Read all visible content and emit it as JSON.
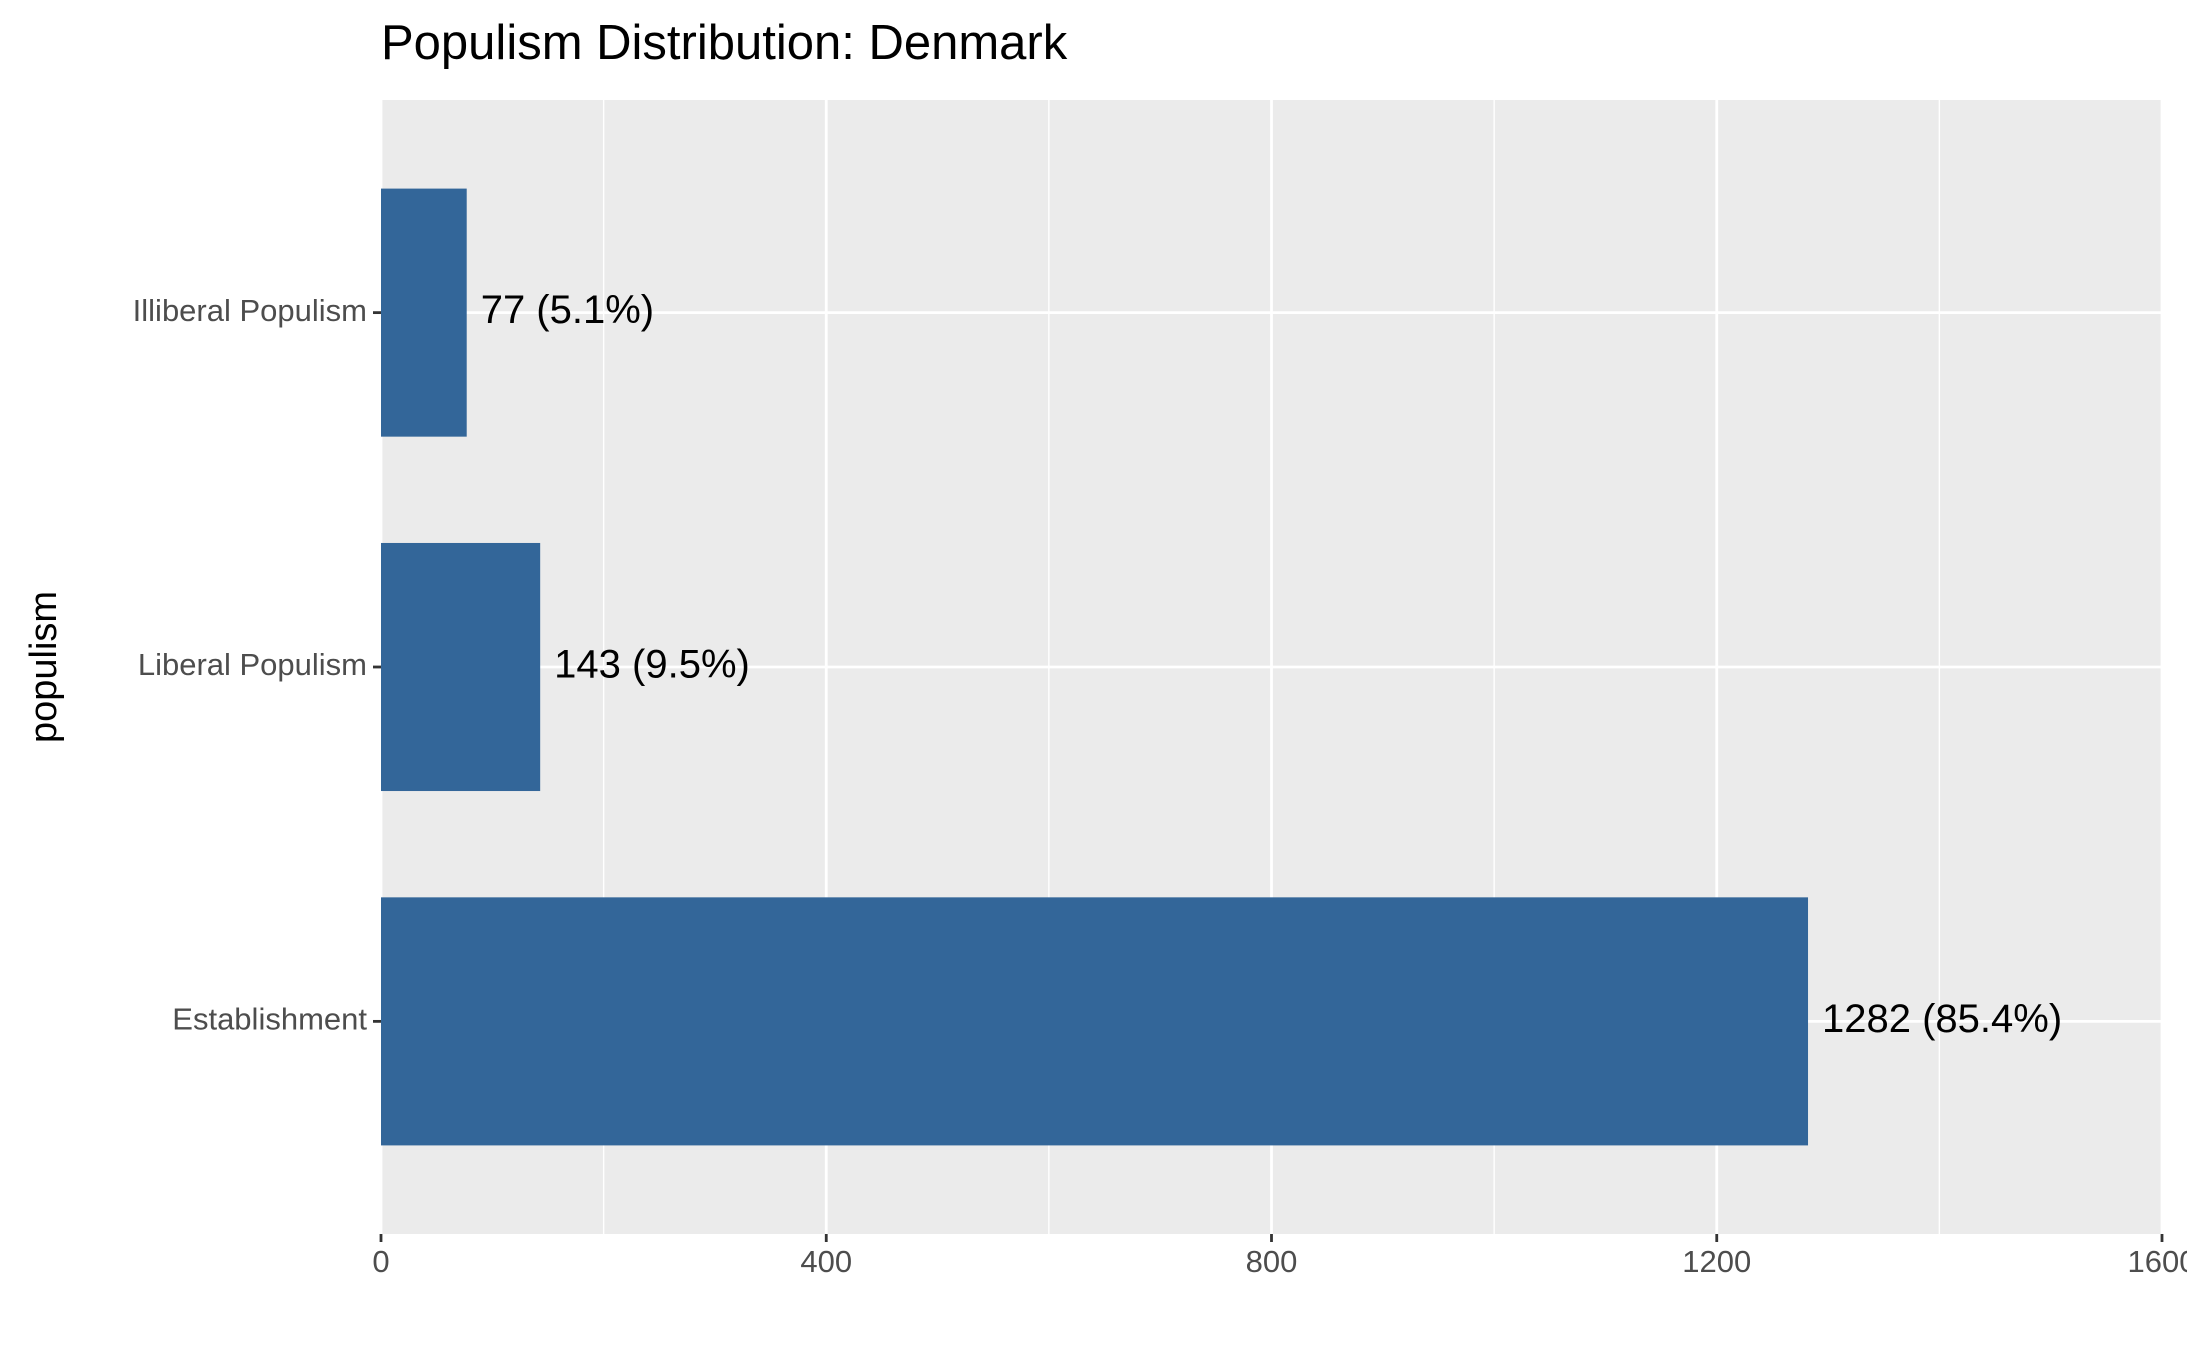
{
  "chart_data": {
    "type": "bar",
    "orientation": "horizontal",
    "title": "Populism Distribution: Denmark",
    "y_label": "populism",
    "categories": [
      "Illiberal Populism",
      "Liberal Populism",
      "Establishment"
    ],
    "values": [
      77,
      143,
      1282
    ],
    "value_labels": [
      "77 (5.1%)",
      "143 (9.5%)",
      "1282 (85.4%)"
    ],
    "color": "#336699",
    "xlim": [
      0,
      1600
    ],
    "xticks": [
      0,
      400,
      800,
      1200,
      1600
    ],
    "minor_xticks": [
      200,
      600,
      1000,
      1400
    ],
    "grid": true
  }
}
